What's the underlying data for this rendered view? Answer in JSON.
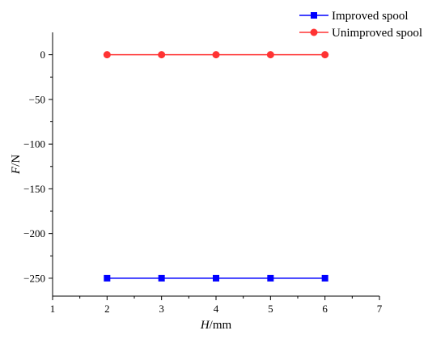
{
  "chart_data": {
    "type": "line",
    "title": "",
    "xlabel_italic": "H",
    "xlabel_unit": "/mm",
    "ylabel_italic": "F",
    "ylabel_unit": "/N",
    "xlim": [
      1,
      7
    ],
    "ylim": [
      -270,
      25
    ],
    "x_ticks": [
      1,
      2,
      3,
      4,
      5,
      6,
      7
    ],
    "y_ticks": [
      0,
      -50,
      -100,
      -150,
      -200,
      -250
    ],
    "x_tick_labels": [
      "1",
      "2",
      "3",
      "4",
      "5",
      "6",
      "7"
    ],
    "y_tick_labels": [
      "0",
      "−50",
      "−100",
      "−150",
      "−200",
      "−250"
    ],
    "grid": false,
    "legend_position": "top-right",
    "x": [
      2,
      3,
      4,
      5,
      6
    ],
    "series": [
      {
        "name": "Improved spool",
        "color": "#0000ff",
        "marker": "square",
        "values": [
          -250,
          -250,
          -250,
          -250,
          -250
        ]
      },
      {
        "name": "Unimproved spool",
        "color": "#ff3333",
        "marker": "circle",
        "values": [
          0,
          0,
          0,
          0,
          0
        ]
      }
    ]
  }
}
